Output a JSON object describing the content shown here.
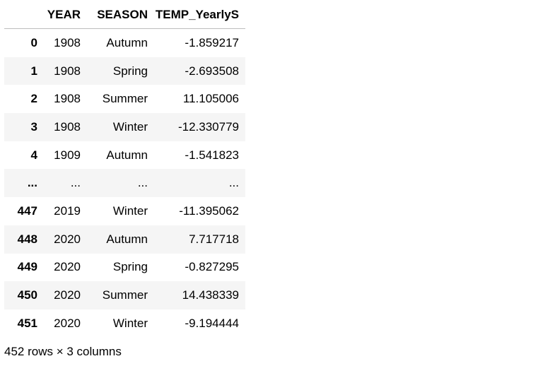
{
  "dataframe": {
    "columns": {
      "index": "",
      "year": "YEAR",
      "season": "SEASON",
      "temp": "TEMP_YearlyS"
    },
    "rows": [
      {
        "index": "0",
        "year": "1908",
        "season": "Autumn",
        "temp": "-1.859217"
      },
      {
        "index": "1",
        "year": "1908",
        "season": "Spring",
        "temp": "-2.693508"
      },
      {
        "index": "2",
        "year": "1908",
        "season": "Summer",
        "temp": "11.105006"
      },
      {
        "index": "3",
        "year": "1908",
        "season": "Winter",
        "temp": "-12.330779"
      },
      {
        "index": "4",
        "year": "1909",
        "season": "Autumn",
        "temp": "-1.541823"
      },
      {
        "index": "...",
        "year": "...",
        "season": "...",
        "temp": "..."
      },
      {
        "index": "447",
        "year": "2019",
        "season": "Winter",
        "temp": "-11.395062"
      },
      {
        "index": "448",
        "year": "2020",
        "season": "Autumn",
        "temp": "7.717718"
      },
      {
        "index": "449",
        "year": "2020",
        "season": "Spring",
        "temp": "-0.827295"
      },
      {
        "index": "450",
        "year": "2020",
        "season": "Summer",
        "temp": "14.438339"
      },
      {
        "index": "451",
        "year": "2020",
        "season": "Winter",
        "temp": "-9.194444"
      }
    ],
    "shape_text": "452 rows × 3 columns"
  }
}
